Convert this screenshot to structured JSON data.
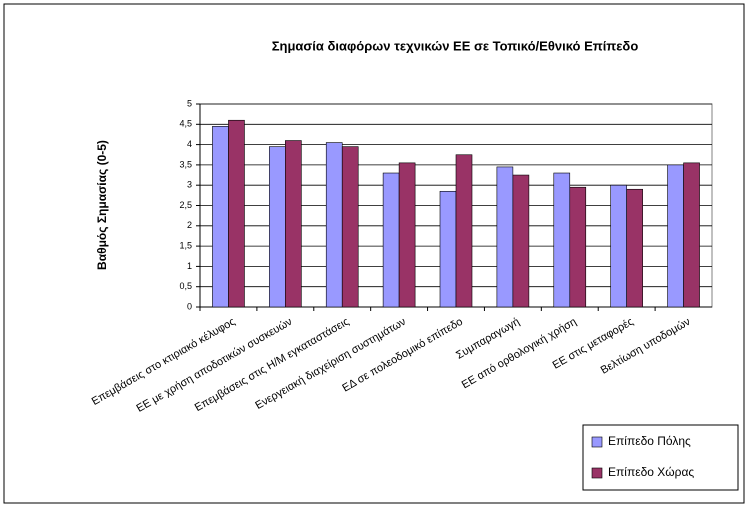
{
  "chart_data": {
    "type": "bar",
    "title": "Σημασία διαφόρων τεχνικών ΕΕ σε Τοπικό/Εθνικό Επίπεδο",
    "y_label": "Βαθμός Σημασίας (0-5)",
    "categories": [
      "Επεμβάσεις στο κτιριακό κέλυφος",
      "ΕΕ με χρήση αποδοτικών συσκευών",
      "Επεμβάσεις στις Η/Μ εγκαταστάσεις",
      "Ενεργειακή διαχείριση συστημάτων",
      "ΕΔ σε πολεοδομικό επίπεδο",
      "Συμπαραγωγή",
      "ΕΕ από ορθολογική χρήση",
      "ΕΕ στις μεταφορές",
      "Βελτίωση υποδομών"
    ],
    "series": [
      {
        "name": "Επίπεδο Πόλης",
        "color": "#9999ff",
        "values": [
          4.45,
          3.95,
          4.05,
          3.3,
          2.85,
          3.45,
          3.3,
          3.0,
          3.5
        ]
      },
      {
        "name": "Επίπεδο Χώρας",
        "color": "#993366",
        "values": [
          4.6,
          4.1,
          3.95,
          3.55,
          3.75,
          3.25,
          2.95,
          2.9,
          3.55
        ]
      }
    ],
    "ylim": [
      0,
      5
    ],
    "yticks": [
      0,
      {
        "value": 0.5,
        "label": "0,5"
      },
      1,
      {
        "value": 1.5,
        "label": "1,5"
      },
      2,
      {
        "value": 2.5,
        "label": "2,5"
      },
      3,
      {
        "value": 3.5,
        "label": "3,5"
      },
      4,
      {
        "value": 4.5,
        "label": "4,5"
      },
      5
    ],
    "grid": true,
    "legend": "bottom-right"
  }
}
